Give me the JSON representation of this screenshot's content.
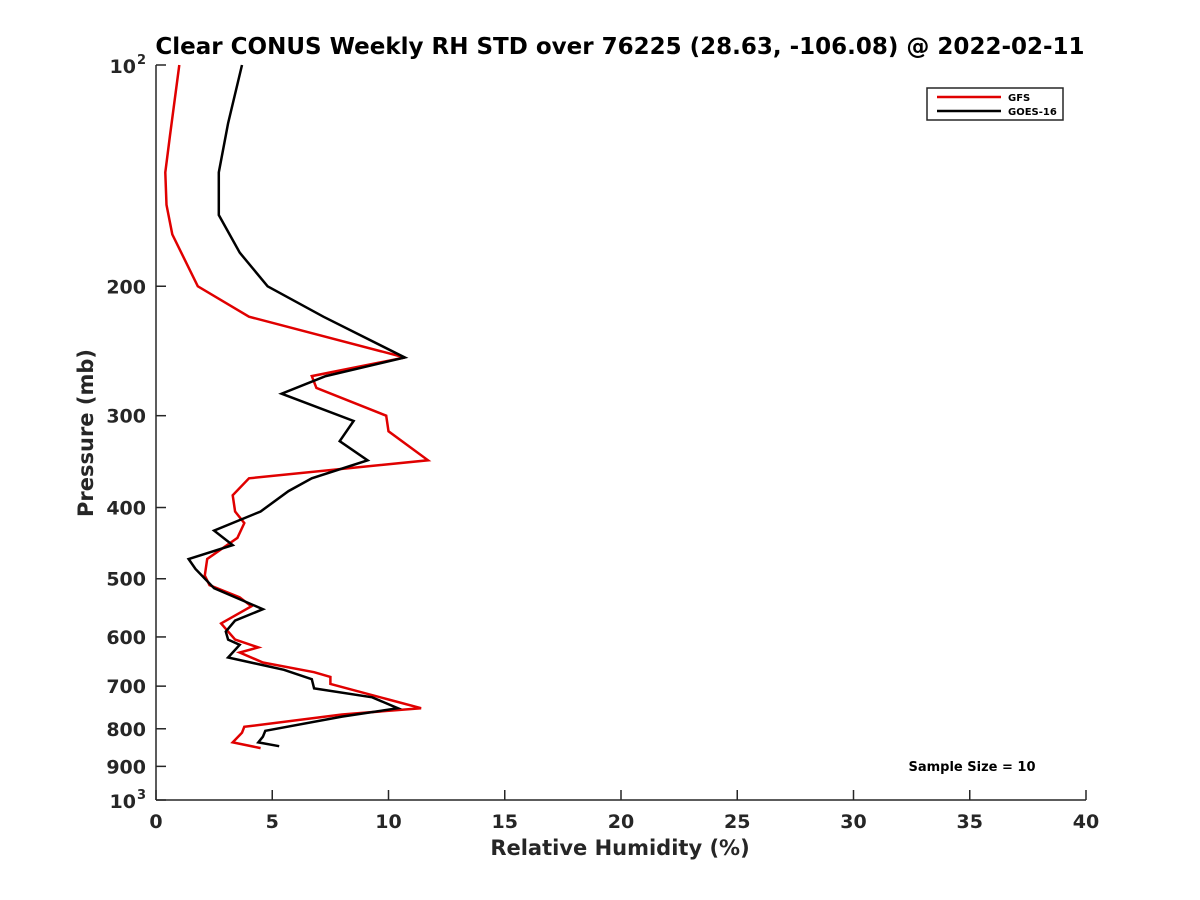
{
  "chart_data": {
    "type": "line",
    "title": "Clear CONUS Weekly RH STD over 76225 (28.63, -106.08) @ 2022-02-11",
    "xlabel": "Relative Humidity (%)",
    "ylabel": "Pressure (mb)",
    "xlim": [
      0,
      40
    ],
    "ylim": [
      100,
      1000
    ],
    "y_scale": "log",
    "y_reversed": true,
    "grid": false,
    "legend_position": "top-right",
    "x_ticks": [
      "0",
      "5",
      "10",
      "15",
      "20",
      "25",
      "30",
      "35",
      "40"
    ],
    "y_ticks": [
      {
        "value": 100,
        "label": "10",
        "sup": "2"
      },
      {
        "value": 200,
        "label": "200",
        "sup": ""
      },
      {
        "value": 300,
        "label": "300",
        "sup": ""
      },
      {
        "value": 400,
        "label": "400",
        "sup": ""
      },
      {
        "value": 500,
        "label": "500",
        "sup": ""
      },
      {
        "value": 600,
        "label": "600",
        "sup": ""
      },
      {
        "value": 700,
        "label": "700",
        "sup": ""
      },
      {
        "value": 800,
        "label": "800",
        "sup": ""
      },
      {
        "value": 900,
        "label": "900",
        "sup": ""
      },
      {
        "value": 1000,
        "label": "10",
        "sup": "3"
      }
    ],
    "series": [
      {
        "name": "GFS",
        "color": "#e00000",
        "points": [
          [
            1.0,
            100
          ],
          [
            0.6,
            125
          ],
          [
            0.4,
            140
          ],
          [
            0.45,
            155
          ],
          [
            0.7,
            170
          ],
          [
            1.8,
            200
          ],
          [
            4.0,
            220
          ],
          [
            10.7,
            250
          ],
          [
            6.7,
            265
          ],
          [
            6.9,
            275
          ],
          [
            9.9,
            300
          ],
          [
            10.0,
            315
          ],
          [
            11.7,
            345
          ],
          [
            4.0,
            365
          ],
          [
            3.3,
            385
          ],
          [
            3.4,
            405
          ],
          [
            3.8,
            420
          ],
          [
            3.5,
            440
          ],
          [
            2.2,
            470
          ],
          [
            2.1,
            495
          ],
          [
            2.3,
            510
          ],
          [
            3.6,
            530
          ],
          [
            4.1,
            545
          ],
          [
            2.8,
            575
          ],
          [
            3.4,
            605
          ],
          [
            4.4,
            620
          ],
          [
            3.6,
            630
          ],
          [
            4.6,
            650
          ],
          [
            6.8,
            670
          ],
          [
            7.5,
            680
          ],
          [
            7.5,
            695
          ],
          [
            10.0,
            730
          ],
          [
            11.4,
            750
          ],
          [
            8.0,
            765
          ],
          [
            3.8,
            795
          ],
          [
            3.7,
            810
          ],
          [
            3.3,
            835
          ],
          [
            4.5,
            850
          ]
        ]
      },
      {
        "name": "GOES-16",
        "color": "#000000",
        "points": [
          [
            3.7,
            100
          ],
          [
            3.1,
            120
          ],
          [
            2.7,
            140
          ],
          [
            2.7,
            160
          ],
          [
            3.6,
            180
          ],
          [
            4.8,
            200
          ],
          [
            7.2,
            220
          ],
          [
            10.7,
            250
          ],
          [
            7.3,
            265
          ],
          [
            5.4,
            280
          ],
          [
            8.5,
            305
          ],
          [
            7.9,
            325
          ],
          [
            9.1,
            345
          ],
          [
            6.7,
            365
          ],
          [
            5.7,
            380
          ],
          [
            4.5,
            405
          ],
          [
            2.5,
            430
          ],
          [
            3.3,
            450
          ],
          [
            1.4,
            470
          ],
          [
            1.7,
            485
          ],
          [
            2.5,
            515
          ],
          [
            4.6,
            550
          ],
          [
            3.4,
            570
          ],
          [
            3.0,
            590
          ],
          [
            3.1,
            605
          ],
          [
            3.6,
            615
          ],
          [
            3.1,
            640
          ],
          [
            5.5,
            665
          ],
          [
            6.7,
            685
          ],
          [
            6.8,
            705
          ],
          [
            9.3,
            725
          ],
          [
            10.4,
            750
          ],
          [
            8.0,
            770
          ],
          [
            4.7,
            805
          ],
          [
            4.6,
            820
          ],
          [
            4.4,
            835
          ],
          [
            5.3,
            845
          ]
        ]
      }
    ],
    "annotations": [
      "Sample Size = 10"
    ]
  }
}
